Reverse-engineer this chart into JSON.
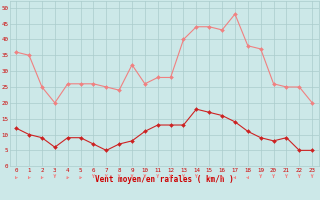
{
  "hours": [
    0,
    1,
    2,
    3,
    4,
    5,
    6,
    7,
    8,
    9,
    10,
    11,
    12,
    13,
    14,
    15,
    16,
    17,
    18,
    19,
    20,
    21,
    22,
    23
  ],
  "rafales": [
    36,
    35,
    25,
    20,
    26,
    26,
    26,
    25,
    24,
    32,
    26,
    28,
    28,
    40,
    44,
    44,
    43,
    48,
    38,
    37,
    26,
    25,
    25,
    20
  ],
  "moyen": [
    12,
    10,
    9,
    6,
    9,
    9,
    7,
    5,
    7,
    8,
    11,
    13,
    13,
    13,
    18,
    17,
    16,
    14,
    11,
    9,
    8,
    9,
    5,
    5
  ],
  "wind_angles": [
    225,
    225,
    225,
    180,
    225,
    225,
    180,
    180,
    180,
    180,
    180,
    180,
    180,
    180,
    180,
    135,
    135,
    135,
    135,
    180,
    180,
    180,
    180,
    180
  ],
  "bg_color": "#cce8e8",
  "grid_color": "#aacccc",
  "line_color_rafales": "#f08080",
  "line_color_moyen": "#cc2222",
  "xlabel": "Vent moyen/en rafales ( km/h )",
  "xlabel_color": "#cc0000",
  "yticks": [
    0,
    5,
    10,
    15,
    20,
    25,
    30,
    35,
    40,
    45,
    50
  ],
  "ylim": [
    0,
    52
  ],
  "xlim": [
    -0.5,
    23.5
  ],
  "figsize": [
    3.2,
    2.0
  ],
  "dpi": 100
}
